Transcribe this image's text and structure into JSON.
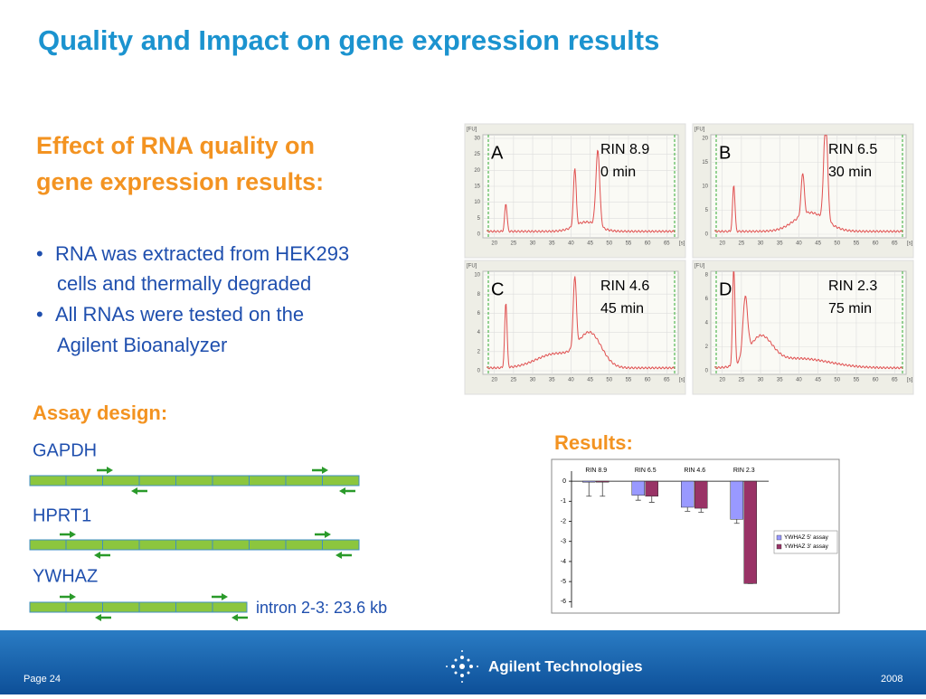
{
  "title": "Quality and Impact on gene expression results",
  "intro": {
    "heading": [
      "Effect of RNA quality on",
      "gene expression results:"
    ],
    "bullets": [
      [
        "RNA was extracted from HEK293",
        "cells and thermally degraded"
      ],
      [
        "All RNAs were tested on the",
        "Agilent Bioanalyzer"
      ]
    ]
  },
  "electropherograms": {
    "y_unit": "[FU]",
    "x_unit": "[s]",
    "xticks": [
      20,
      25,
      30,
      35,
      40,
      45,
      50,
      55,
      60,
      65
    ],
    "panels": [
      {
        "label": "A",
        "rin": "RIN 8.9",
        "time": "0 min",
        "yticks": [
          0,
          5,
          10,
          15,
          20,
          25,
          30
        ]
      },
      {
        "label": "B",
        "rin": "RIN 6.5",
        "time": "30 min",
        "yticks": [
          0,
          5,
          10,
          15,
          20
        ]
      },
      {
        "label": "C",
        "rin": "RIN 4.6",
        "time": "45 min",
        "yticks": [
          0,
          2,
          4,
          6,
          8,
          10
        ]
      },
      {
        "label": "D",
        "rin": "RIN 2.3",
        "time": "75 min",
        "yticks": [
          0,
          2,
          4,
          6,
          8
        ]
      }
    ]
  },
  "assay": {
    "heading": "Assay design:",
    "genes": [
      "GAPDH",
      "HPRT1",
      "YWHAZ"
    ],
    "note": "intron 2-3: 23.6 kb"
  },
  "results_heading": "Results:",
  "chart_data": {
    "type": "bar",
    "categories": [
      "RIN 8.9",
      "RIN 6.5",
      "RIN 4.6",
      "RIN 2.3"
    ],
    "series": [
      {
        "name": "YWHAZ 5' assay",
        "color": "#9999ff",
        "values": [
          -0.05,
          -0.7,
          -1.3,
          -1.9
        ],
        "errors": [
          0.7,
          0.25,
          0.2,
          0.2
        ]
      },
      {
        "name": "YWHAZ 3' assay",
        "color": "#993366",
        "values": [
          -0.05,
          -0.75,
          -1.35,
          -5.1
        ],
        "errors": [
          0.7,
          0.3,
          0.2,
          0
        ]
      }
    ],
    "ylim": [
      -6.3,
      0.5
    ],
    "yticks": [
      0,
      -1,
      -2,
      -3,
      -4,
      -5,
      -6
    ],
    "legend": "right"
  },
  "footer": {
    "page": "Page 24",
    "brand": "Agilent Technologies",
    "year": "2008"
  }
}
